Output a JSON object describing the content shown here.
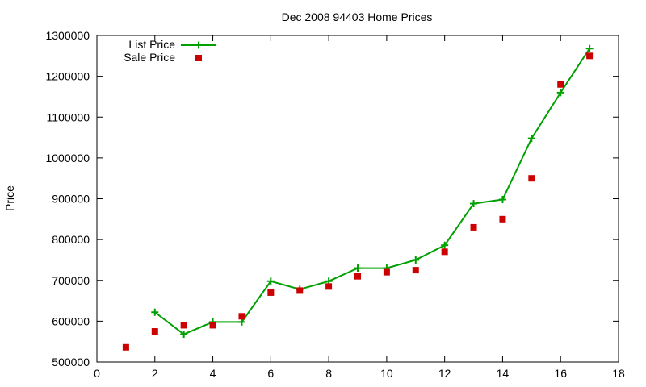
{
  "chart_data": {
    "type": "line",
    "title": "Dec 2008 94403 Home Prices",
    "xlabel": "",
    "ylabel": "Price",
    "xlim": [
      0,
      18
    ],
    "ylim": [
      500000,
      1300000
    ],
    "xticks": [
      0,
      2,
      4,
      6,
      8,
      10,
      12,
      14,
      16,
      18
    ],
    "yticks": [
      500000,
      600000,
      700000,
      800000,
      900000,
      1000000,
      1100000,
      1200000,
      1300000
    ],
    "grid": false,
    "legend_position": "top-left",
    "x": [
      1,
      2,
      3,
      4,
      5,
      6,
      7,
      8,
      9,
      10,
      11,
      12,
      13,
      14,
      15,
      16,
      17
    ],
    "series": [
      {
        "name": "List Price",
        "style": "line with plus markers",
        "color": "#00a000",
        "values": [
          null,
          622000,
          568000,
          598000,
          598000,
          698000,
          678000,
          698000,
          730000,
          730000,
          750000,
          786000,
          888000,
          898000,
          1048000,
          1160000,
          1268000
        ]
      },
      {
        "name": "Sale Price",
        "style": "square markers",
        "color": "#cc0000",
        "values": [
          536000,
          575000,
          590000,
          590000,
          612000,
          670000,
          675000,
          685000,
          710000,
          720000,
          725000,
          770000,
          830000,
          850000,
          950000,
          1180000,
          1250000
        ]
      }
    ]
  }
}
